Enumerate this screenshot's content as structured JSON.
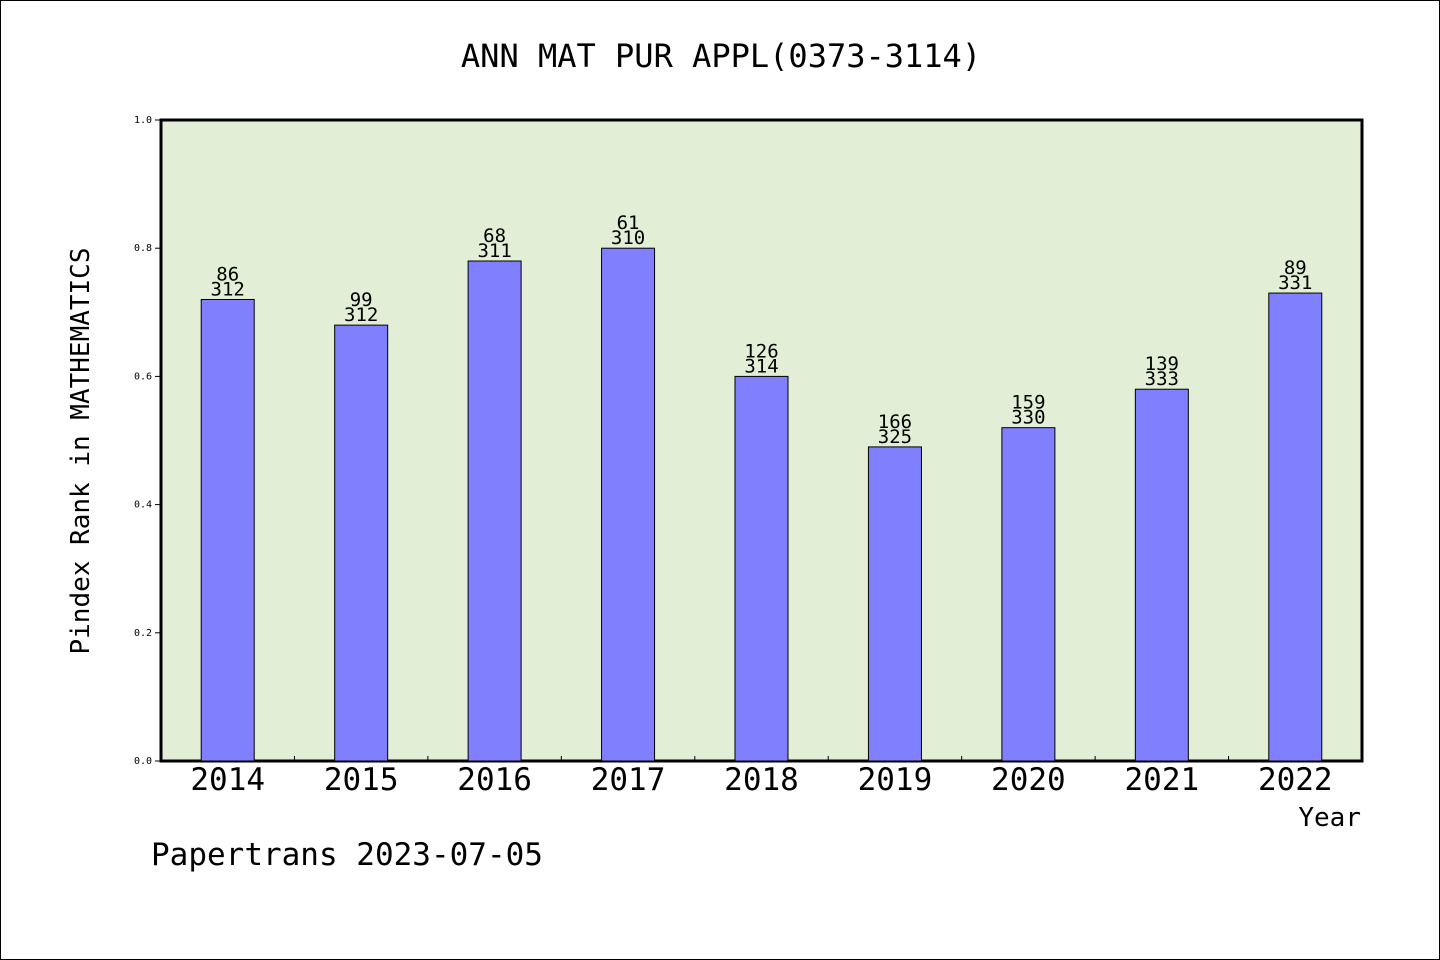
{
  "chart_data": {
    "type": "bar",
    "title": "ANN MAT PUR APPL(0373-3114)",
    "xlabel": "Year",
    "ylabel": "Pindex Rank in MATHEMATICS",
    "footer": "Papertrans 2023-07-05",
    "ylim": [
      0,
      1.0
    ],
    "yticks": [
      "0.0",
      "0.2",
      "0.4",
      "0.6",
      "0.8",
      "1.0"
    ],
    "categories": [
      "2014",
      "2015",
      "2016",
      "2017",
      "2018",
      "2019",
      "2020",
      "2021",
      "2022"
    ],
    "values": [
      0.72,
      0.68,
      0.78,
      0.8,
      0.6,
      0.49,
      0.52,
      0.58,
      0.73
    ],
    "labels_rank": [
      "86",
      "99",
      "68",
      "61",
      "126",
      "166",
      "159",
      "139",
      "89"
    ],
    "labels_total": [
      "312",
      "312",
      "311",
      "310",
      "314",
      "325",
      "330",
      "333",
      "331"
    ],
    "grid": false,
    "colors": {
      "plot_background": "#e2efd6",
      "bar_fill": "#8080ff",
      "bar_stroke": "#000000",
      "axis": "#000000"
    }
  }
}
